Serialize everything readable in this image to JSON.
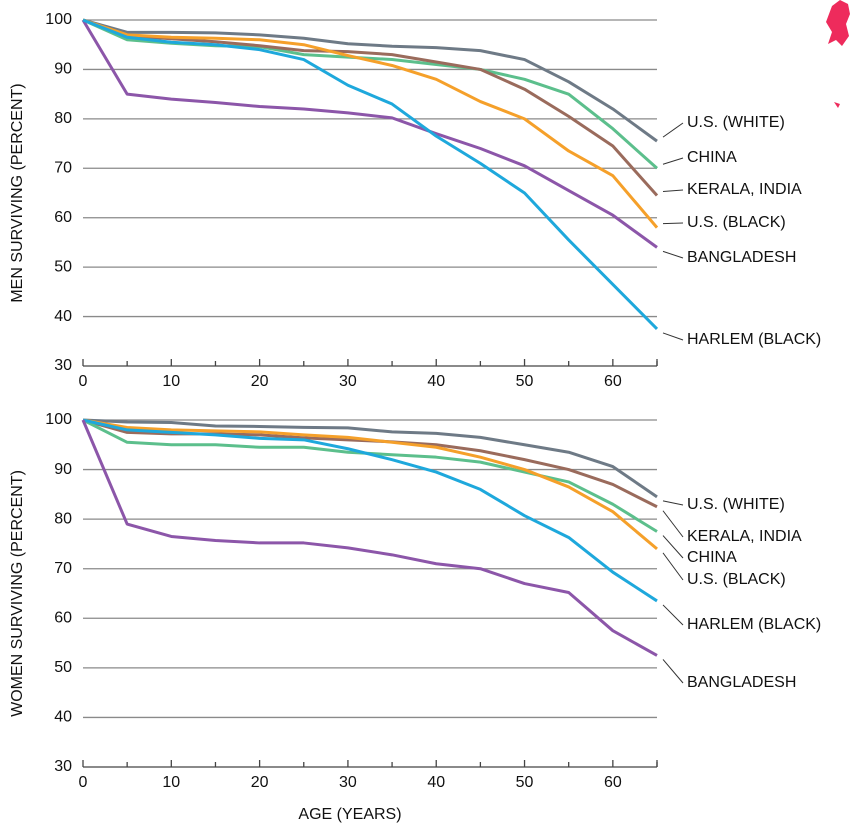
{
  "chart_data": [
    {
      "type": "line",
      "y_label": "MEN SURVIVING (PERCENT)",
      "x": [
        0,
        5,
        10,
        15,
        20,
        25,
        30,
        35,
        40,
        45,
        50,
        55,
        60,
        65
      ],
      "xlim": [
        0,
        65
      ],
      "ylim": [
        30,
        100
      ],
      "xticks": [
        0,
        10,
        20,
        30,
        40,
        50,
        60
      ],
      "yticks": [
        30,
        40,
        50,
        60,
        70,
        80,
        90,
        100
      ],
      "series": [
        {
          "name": "U.S. (WHITE)",
          "color": "#6e7a86",
          "values": [
            100,
            97.5,
            97.5,
            97.4,
            97,
            96.3,
            95.2,
            94.7,
            94.4,
            93.8,
            92,
            87.5,
            82,
            75.5
          ]
        },
        {
          "name": "CHINA",
          "color": "#5cbf8c",
          "values": [
            100,
            96,
            95.3,
            94.8,
            94.6,
            93,
            92.5,
            92,
            91,
            90,
            88,
            85,
            78,
            70
          ]
        },
        {
          "name": "KERALA, INDIA",
          "color": "#9a6b5c",
          "values": [
            100,
            96.8,
            96.2,
            95.6,
            94.8,
            93.8,
            93.6,
            93,
            91.5,
            90,
            86,
            80.5,
            74.5,
            64.5
          ]
        },
        {
          "name": "U.S. (BLACK)",
          "color": "#f5a02a",
          "values": [
            100,
            97,
            96.5,
            96.3,
            96,
            95,
            92.8,
            90.8,
            88,
            83.5,
            80,
            73.5,
            68.5,
            58
          ]
        },
        {
          "name": "BANGLADESH",
          "color": "#8c56a9",
          "values": [
            100,
            85,
            84,
            83.3,
            82.5,
            82,
            81.2,
            80.2,
            77,
            74,
            70.5,
            65.5,
            60.5,
            54
          ]
        },
        {
          "name": "HARLEM (BLACK)",
          "color": "#1ea8dc",
          "values": [
            100,
            96.5,
            95.5,
            95,
            94,
            92,
            86.8,
            83,
            76.5,
            71,
            65,
            55.5,
            46.5,
            37.5
          ]
        }
      ]
    },
    {
      "type": "line",
      "y_label": "WOMEN SURVIVING (PERCENT)",
      "x_label": "AGE (YEARS)",
      "x": [
        0,
        5,
        10,
        15,
        20,
        25,
        30,
        35,
        40,
        45,
        50,
        55,
        60,
        65
      ],
      "xlim": [
        0,
        65
      ],
      "ylim": [
        30,
        100
      ],
      "xticks": [
        0,
        10,
        20,
        30,
        40,
        50,
        60
      ],
      "yticks": [
        30,
        40,
        50,
        60,
        70,
        80,
        90,
        100
      ],
      "series": [
        {
          "name": "U.S. (WHITE)",
          "color": "#6e7a86",
          "values": [
            100,
            99.6,
            99.5,
            98.8,
            98.7,
            98.5,
            98.4,
            97.6,
            97.3,
            96.5,
            95,
            93.5,
            90.6,
            84.5
          ]
        },
        {
          "name": "KERALA, INDIA",
          "color": "#9a6b5c",
          "values": [
            100,
            97.5,
            97.2,
            97.2,
            97,
            96.4,
            96,
            95.6,
            95,
            93.8,
            92,
            90,
            87,
            82.5
          ]
        },
        {
          "name": "CHINA",
          "color": "#5cbf8c",
          "values": [
            100,
            95.5,
            95,
            95,
            94.5,
            94.5,
            93.5,
            93,
            92.5,
            91.5,
            89.5,
            87.5,
            83,
            77.5
          ]
        },
        {
          "name": "U.S. (BLACK)",
          "color": "#f5a02a",
          "values": [
            100,
            98.5,
            98,
            97.8,
            97.6,
            97,
            96.5,
            95.5,
            94.5,
            92.5,
            90,
            86.5,
            81.5,
            74
          ]
        },
        {
          "name": "HARLEM (BLACK)",
          "color": "#1ea8dc",
          "values": [
            100,
            98,
            97.5,
            97,
            96.3,
            96,
            94.2,
            92,
            89.5,
            86,
            80.7,
            76.3,
            69.3,
            63.5
          ]
        },
        {
          "name": "BANGLADESH",
          "color": "#8c56a9",
          "values": [
            100,
            79,
            76.5,
            75.7,
            75.2,
            75.2,
            74.2,
            72.8,
            71,
            70,
            67,
            65.2,
            57.5,
            52.5
          ]
        }
      ]
    }
  ]
}
